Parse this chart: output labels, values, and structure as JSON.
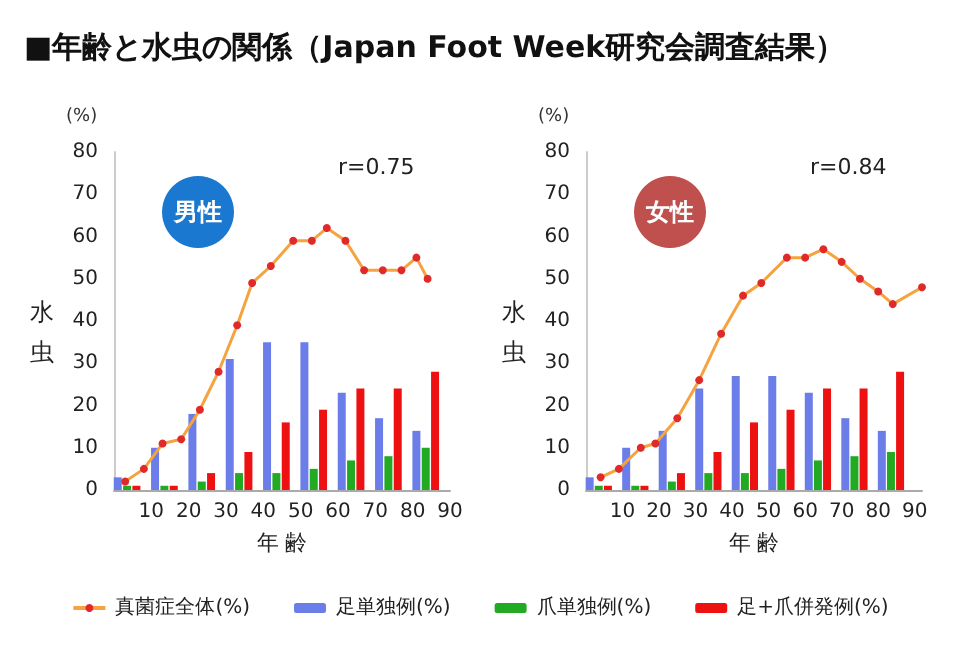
{
  "chart_data": [
    {
      "type": "bar",
      "title": "■年齢と水虫の関係（Japan Foot Week研究会調査結果）",
      "xlabel": "年 齢",
      "ylabel": "水虫",
      "annotations": [
        "(%)",
        "男性",
        "r=0.75"
      ],
      "xlim": [
        0,
        90
      ],
      "xticks": [
        10,
        20,
        30,
        40,
        50,
        60,
        70,
        80,
        90
      ],
      "ylim": [
        0,
        80
      ],
      "yticks": [
        0,
        10,
        20,
        30,
        40,
        50,
        60,
        70,
        80
      ],
      "grid": false,
      "legend": "bottom",
      "series": [
        {
          "name": "真菌症全体(%)",
          "type": "line",
          "marker": "circle",
          "color": "#f5a340",
          "x": [
            3,
            8,
            13,
            18,
            23,
            28,
            33,
            37,
            42,
            48,
            53,
            57,
            62,
            67,
            72,
            77,
            81,
            84
          ],
          "values": [
            2,
            5,
            11,
            12,
            19,
            28,
            39,
            49,
            53,
            59,
            59,
            62,
            59,
            52,
            52,
            52,
            55,
            50
          ]
        },
        {
          "name": "足単独例(%)",
          "color": "#6b7de8",
          "x": [
            1,
            11,
            21,
            31,
            41,
            51,
            61,
            71,
            81
          ],
          "values": [
            3,
            10,
            18,
            31,
            35,
            35,
            23,
            17,
            14
          ]
        },
        {
          "name": "爪単独例(%)",
          "color": "#22aa22",
          "x": [
            3.5,
            13.5,
            23.5,
            33.5,
            43.5,
            53.5,
            63.5,
            73.5,
            83.5
          ],
          "values": [
            1,
            1,
            2,
            4,
            4,
            5,
            7,
            8,
            10
          ]
        },
        {
          "name": "足+爪併発例(%)",
          "color": "#ee1111",
          "x": [
            6,
            16,
            26,
            36,
            46,
            56,
            66,
            76,
            86
          ],
          "values": [
            1,
            1,
            4,
            9,
            16,
            19,
            24,
            24,
            28
          ]
        }
      ]
    },
    {
      "type": "bar",
      "xlabel": "年 齢",
      "ylabel": "水虫",
      "annotations": [
        "(%)",
        "女性",
        "r=0.84"
      ],
      "xlim": [
        0,
        92
      ],
      "xticks": [
        10,
        20,
        30,
        40,
        50,
        60,
        70,
        80,
        90
      ],
      "ylim": [
        0,
        80
      ],
      "yticks": [
        0,
        10,
        20,
        30,
        40,
        50,
        60,
        70,
        80
      ],
      "grid": false,
      "legend": false,
      "series": [
        {
          "type": "line",
          "marker": "circle",
          "color": "#f5a340",
          "x": [
            4,
            9,
            15,
            19,
            25,
            31,
            37,
            43,
            48,
            55,
            60,
            65,
            70,
            75,
            80,
            84,
            92
          ],
          "values": [
            3,
            5,
            10,
            11,
            17,
            26,
            37,
            46,
            49,
            55,
            55,
            57,
            54,
            50,
            47,
            44,
            48
          ]
        },
        {
          "color": "#6b7de8",
          "x": [
            1,
            11,
            21,
            31,
            41,
            51,
            61,
            71,
            81
          ],
          "values": [
            3,
            10,
            14,
            24,
            27,
            27,
            23,
            17,
            14
          ]
        },
        {
          "color": "#22aa22",
          "x": [
            3.5,
            13.5,
            23.5,
            33.5,
            43.5,
            53.5,
            63.5,
            73.5,
            83.5
          ],
          "values": [
            1,
            1,
            2,
            4,
            4,
            5,
            7,
            8,
            9
          ]
        },
        {
          "color": "#ee1111",
          "x": [
            6,
            16,
            26,
            36,
            46,
            56,
            66,
            76,
            86
          ],
          "values": [
            1,
            1,
            4,
            9,
            16,
            19,
            24,
            24,
            28
          ]
        }
      ]
    }
  ]
}
